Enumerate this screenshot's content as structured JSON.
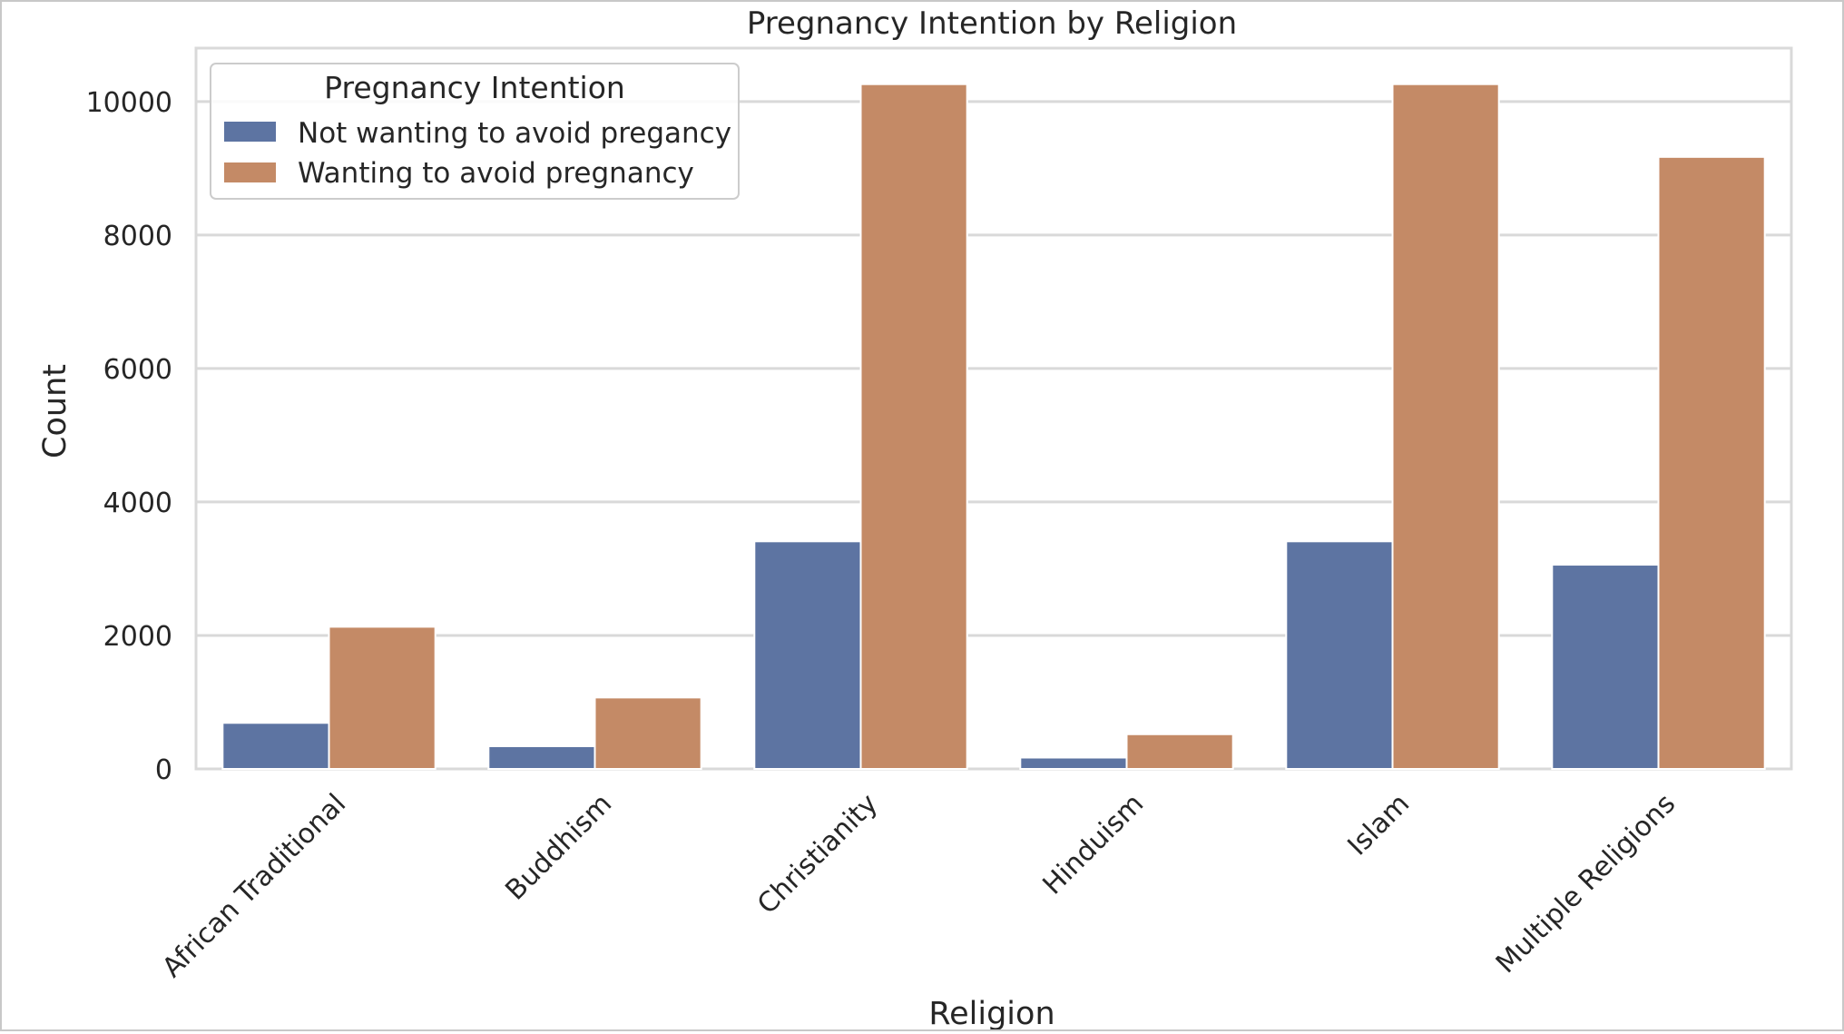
{
  "chart_data": {
    "type": "bar",
    "title": "Pregnancy Intention by Religion",
    "xlabel": "Religion",
    "ylabel": "Count",
    "categories": [
      "African Traditional",
      "Buddhism",
      "Christianity",
      "Hinduism",
      "Islam",
      "Multiple Religions"
    ],
    "series": [
      {
        "name": "Not wanting to avoid pregancy",
        "values": [
          690,
          340,
          3410,
          170,
          3410,
          3060
        ],
        "color": "#5d74a2"
      },
      {
        "name": "Wanting to avoid pregnancy",
        "values": [
          2130,
          1070,
          10260,
          520,
          10260,
          9170
        ],
        "color": "#c48a66"
      }
    ],
    "ylim": [
      0,
      10800
    ],
    "yticks": [
      0,
      2000,
      4000,
      6000,
      8000,
      10000
    ],
    "grid": true,
    "legend": {
      "title": "Pregnancy Intention",
      "placement": "top-left"
    },
    "colors": {
      "grid": "#d9d9d9",
      "axes_frame": "#d9d9d9",
      "text": "#262626"
    }
  }
}
